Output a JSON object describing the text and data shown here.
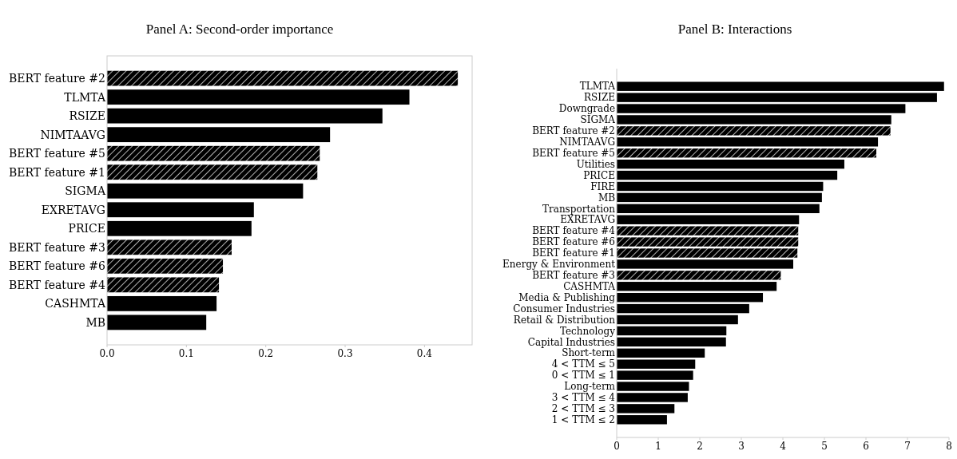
{
  "chart_data": [
    {
      "type": "bar",
      "orientation": "horizontal",
      "title": "Panel A: Second-order importance",
      "categories": [
        "BERT feature #2",
        "TLMTA",
        "RSIZE",
        "NIMTAAVG",
        "BERT feature #5",
        "BERT feature #1",
        "SIGMA",
        "EXRETAVG",
        "PRICE",
        "BERT feature #3",
        "BERT feature #6",
        "BERT feature #4",
        "CASHMTA",
        "MB"
      ],
      "series": [
        {
          "color": "#000000",
          "values": [
            0.442,
            null,
            null,
            null,
            0.268,
            0.265,
            null,
            null,
            null,
            0.157,
            0.146,
            0.141,
            null,
            null
          ]
        },
        {
          "color": "#000000",
          "values": [
            null,
            0.381,
            0.347,
            0.281,
            null,
            null,
            0.247,
            0.185,
            0.182,
            null,
            null,
            null,
            0.138,
            0.125
          ]
        }
      ],
      "xlim": [
        0,
        0.46
      ],
      "xticks": [
        {
          "value": 0,
          "label": "0.0"
        },
        0.1,
        0.2,
        0.3,
        0.4
      ],
      "grid": false
    },
    {
      "type": "bar",
      "orientation": "horizontal",
      "title": "Panel B: Interactions",
      "categories": [
        "TLMTA",
        "RSIZE",
        "Downgrade",
        "SIGMA",
        "BERT feature #2",
        "NIMTAAVG",
        "BERT feature #5",
        "Utilities",
        "PRICE",
        "FIRE",
        "MB",
        "Transportation",
        "EXRETAVG",
        "BERT feature #4",
        "BERT feature #6",
        "BERT feature #1",
        "Energy & Environment",
        "BERT feature #3",
        "CASHMTA",
        "Media & Publishing",
        "Consumer Industries",
        "Retail & Distribution",
        "Technology",
        "Capital Industries",
        "Short-term",
        "4 < TTM ≤ 5",
        "0 < TTM ≤ 1",
        "Long-term",
        "3 < TTM ≤ 4",
        "2 < TTM ≤ 3",
        "1 < TTM ≤ 2"
      ],
      "series": [
        {
          "color": "#000000",
          "values": [
            null,
            null,
            null,
            null,
            6.59,
            null,
            6.25,
            null,
            null,
            null,
            null,
            null,
            null,
            4.37,
            4.37,
            4.35,
            null,
            3.95,
            null,
            null,
            null,
            null,
            null,
            null,
            null,
            null,
            null,
            null,
            null,
            null,
            null
          ]
        },
        {
          "color": "#000000",
          "values": [
            7.88,
            7.71,
            6.95,
            6.61,
            null,
            6.29,
            null,
            5.48,
            5.31,
            4.97,
            4.94,
            4.88,
            4.39,
            null,
            null,
            null,
            4.25,
            null,
            3.85,
            3.52,
            3.19,
            2.92,
            2.64,
            2.63,
            2.12,
            1.89,
            1.84,
            1.74,
            1.71,
            1.39,
            1.21
          ]
        }
      ],
      "xlim": [
        0,
        8
      ],
      "xticks": [
        0,
        1,
        2,
        3,
        4,
        5,
        6,
        7,
        8
      ],
      "grid": false
    }
  ]
}
